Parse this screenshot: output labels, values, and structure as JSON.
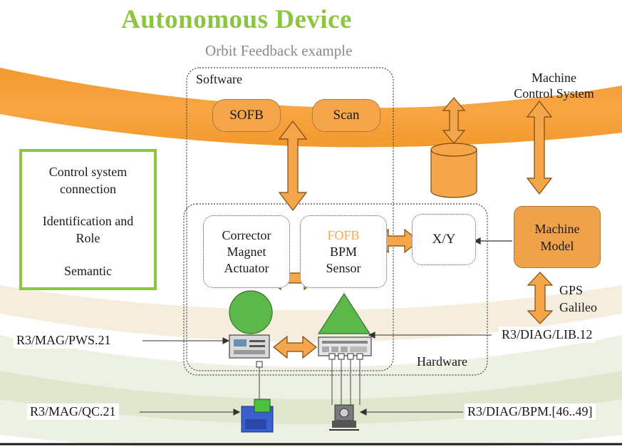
{
  "title": "Autonomous Device",
  "subtitle": "Orbit Feedback example",
  "software": {
    "label": "Software",
    "sofb": "SOFB",
    "scan": "Scan"
  },
  "machine_control": {
    "line1": "Machine",
    "line2": "Control System"
  },
  "legend": {
    "item1_line1": "Control system",
    "item1_line2": "connection",
    "item2_line1": "Identification and",
    "item2_line2": "Role",
    "item3": "Semantic"
  },
  "hardware": {
    "label": "Hardware",
    "corrector_line1": "Corrector",
    "corrector_line2": "Magnet",
    "corrector_line3": "Actuator",
    "fofb": "FOFB",
    "bpm_line1": "BPM",
    "bpm_line2": "Sensor",
    "xy": "X/Y"
  },
  "machine_model": {
    "line1": "Machine",
    "line2": "Model"
  },
  "gps": {
    "line1": "GPS",
    "line2": "Galileo"
  },
  "device_labels": {
    "pws": "R3/MAG/PWS.21",
    "lib": "R3/DIAG/LIB.12",
    "qc": "R3/MAG/QC.21",
    "bpm": "R3/DIAG/BPM.[46..49]"
  },
  "colors": {
    "accent_green": "#8cc63f",
    "orange": "#f5a64a",
    "shape_green": "#5cb84a"
  }
}
